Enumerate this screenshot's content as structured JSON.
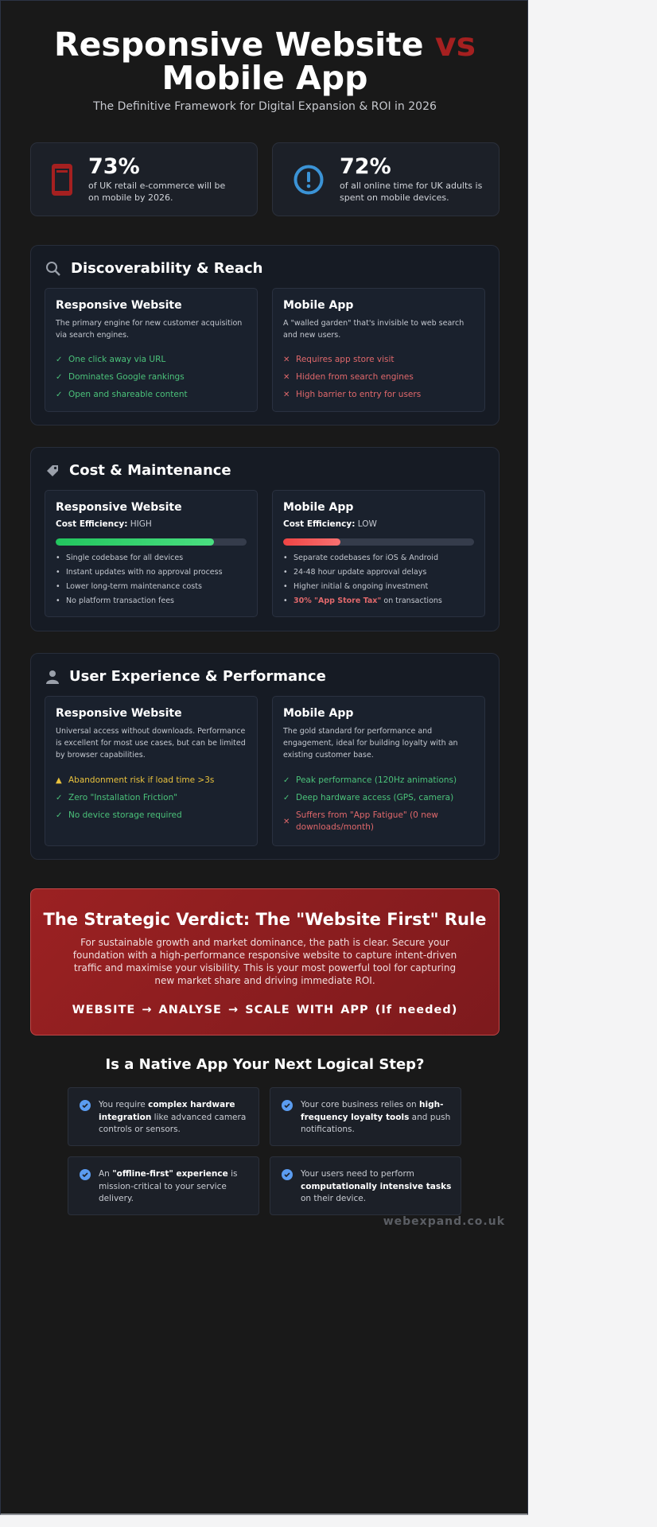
{
  "header": {
    "title_part1": "Responsive Website",
    "title_vs": "vs",
    "title_part2": "Mobile App",
    "subtitle": "The Definitive Framework for Digital Expansion & ROI in 2026"
  },
  "stats": [
    {
      "icon": "mobile-phone-icon",
      "value": "73%",
      "text": "of UK retail e-commerce will be on mobile by 2026.",
      "color": "#a52020"
    },
    {
      "icon": "exclamation-circle-icon",
      "value": "72%",
      "text": "of all online time for UK adults is spent on mobile devices.",
      "color": "#3b93d6"
    }
  ],
  "discoverability": {
    "title": "Discoverability & Reach",
    "icon": "search-icon",
    "website": {
      "title": "Responsive Website",
      "desc": "The primary engine for new customer acquisition via search engines.",
      "items": [
        "One click away via URL",
        "Dominates Google rankings",
        "Open and shareable content"
      ]
    },
    "app": {
      "title": "Mobile App",
      "desc": "A \"walled garden\" that's invisible to web search and new users.",
      "items": [
        "Requires app store visit",
        "Hidden from search engines",
        "High barrier to entry for users"
      ]
    }
  },
  "cost": {
    "title": "Cost & Maintenance",
    "icon": "tag-icon",
    "label": "Cost Efficiency:",
    "website": {
      "title": "Responsive Website",
      "level": "HIGH",
      "fill_percent": 83,
      "items": [
        "Single codebase for all devices",
        "Instant updates with no approval process",
        "Lower long-term maintenance costs",
        "No platform transaction fees"
      ]
    },
    "app": {
      "title": "Mobile App",
      "level": "LOW",
      "fill_percent": 30,
      "items": [
        "Separate codebases for iOS & Android",
        "24-48 hour update approval delays",
        "Higher initial & ongoing investment"
      ],
      "highlight": "30% \"App Store Tax\"",
      "highlight_rest": " on transactions"
    }
  },
  "ux": {
    "title": "User Experience & Performance",
    "icon": "user-icon",
    "website": {
      "title": "Responsive Website",
      "desc": "Universal access without downloads. Performance is excellent for most use cases, but can be limited by browser capabilities.",
      "warning": "Abandonment risk if load time >3s",
      "items": [
        "Zero \"Installation Friction\"",
        "No device storage required"
      ]
    },
    "app": {
      "title": "Mobile App",
      "desc": "The gold standard for performance and engagement, ideal for building loyalty with an existing customer base.",
      "items": [
        "Peak performance (120Hz animations)",
        "Deep hardware access (GPS, camera)"
      ],
      "negative": "Suffers from \"App Fatigue\" (0 new downloads/month)"
    }
  },
  "verdict": {
    "title": "The Strategic Verdict: The \"Website First\" Rule",
    "body": "For sustainable growth and market dominance, the path is clear. Secure your foundation with a high-performance responsive website to capture intent-driven traffic and maximise your visibility. This is your most powerful tool for capturing new market share and driving immediate ROI.",
    "steps": [
      "WEBSITE",
      "ANALYSE",
      "SCALE WITH APP (If needed)"
    ],
    "arrow": "→"
  },
  "next_step": {
    "title": "Is a Native App Your Next Logical Step?",
    "cards": [
      {
        "pre": "You require ",
        "bold": "complex hardware integration",
        "post": " like advanced camera controls or sensors."
      },
      {
        "pre": "Your core business relies on ",
        "bold": "high-frequency loyalty tools",
        "post": " and push notifications."
      },
      {
        "pre": "An ",
        "bold": "\"offline-first\" experience",
        "post": " is mission-critical to your service delivery."
      },
      {
        "pre": "Your users need to perform ",
        "bold": "computationally intensive tasks",
        "post": " on their device."
      }
    ]
  },
  "footer": {
    "brand": "webexpand.co.uk"
  },
  "colors": {
    "background": "#191919",
    "accent_red": "#a52020",
    "green": "#4bc27a",
    "red": "#e0686b",
    "yellow": "#e9c23d",
    "blue": "#5b9cf0"
  }
}
